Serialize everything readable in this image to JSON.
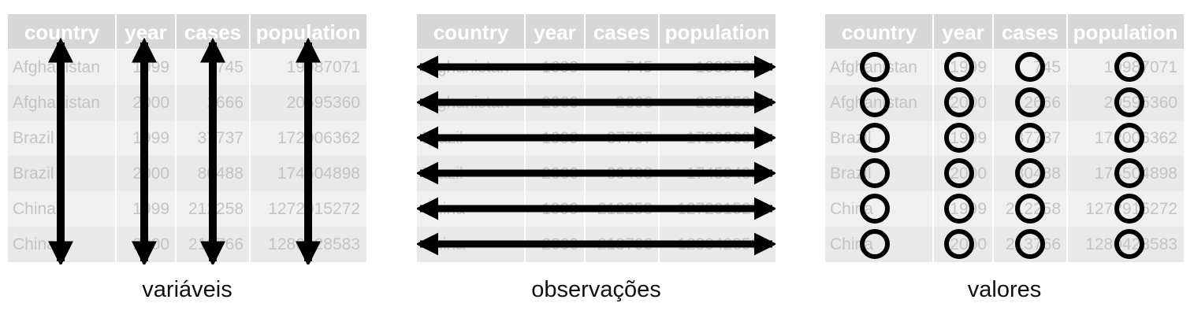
{
  "columns": [
    "country",
    "year",
    "cases",
    "population"
  ],
  "rows": [
    [
      "Afghanistan",
      "1999",
      "745",
      "19987071"
    ],
    [
      "Afghanistan",
      "2000",
      "2666",
      "20595360"
    ],
    [
      "Brazil",
      "1999",
      "37737",
      "172006362"
    ],
    [
      "Brazil",
      "2000",
      "80488",
      "174504898"
    ],
    [
      "China",
      "1999",
      "212258",
      "1272915272"
    ],
    [
      "China",
      "2000",
      "213766",
      "1280428583"
    ]
  ],
  "panels": [
    {
      "id": "variables",
      "caption": "variáveis",
      "overlay": "vertical-arrows"
    },
    {
      "id": "observations",
      "caption": "observações",
      "overlay": "horizontal-arrows"
    },
    {
      "id": "values",
      "caption": "valores",
      "overlay": "circles"
    }
  ],
  "colors": {
    "header_bg": "#d7d7d7",
    "row_bg": "#f0f0f0",
    "row_alt_bg": "#e9e9e9",
    "cell_text": "#c4c4c4",
    "header_text": "#ffffff",
    "overlay": "#000000"
  }
}
